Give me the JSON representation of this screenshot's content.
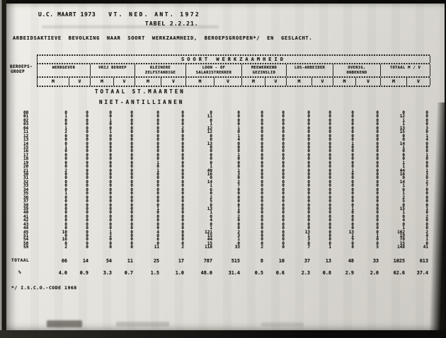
{
  "page": {
    "date_label": "U.C. MAART 1973",
    "census_label": "VT. NED. ANT. 1972",
    "tabel_label": "TABEL 2.2.21.",
    "title": "ARBEIDSAKTIEVE BEVOLKING NAAR SOORT WERKZAAMHEID, BEROEPSGROEPEN*/ EN GESLACHT.",
    "footnote": "*/ I.S.C.O.-CODE 1968"
  },
  "table": {
    "span_header": "SOORT WERKZAAMHEID",
    "row_header_line1": "BEROEPS-",
    "row_header_line2": "GROEP",
    "section_title_1": "TOTAAL ST.MAARTEN",
    "section_title_2": "NIET-ANTILLIANEN",
    "groups": [
      {
        "line1": "WERKGEVER",
        "line2": ""
      },
      {
        "line1": "VRIJ BEROEP",
        "line2": ""
      },
      {
        "line1": "KLEINERE",
        "line2": "ZELFSTANDIGE"
      },
      {
        "line1": "LOON - OF",
        "line2": "SALARISTREKKER"
      },
      {
        "line1": "MEEWERKEND",
        "line2": "GEZINSLID"
      },
      {
        "line1": "LOS-ARBEIDER",
        "line2": ""
      },
      {
        "line1": "OVERIG,",
        "line2": "ONBEKEND"
      },
      {
        "line1": "TOTAAL M / V",
        "line2": ""
      }
    ],
    "subcols": [
      "M",
      "V"
    ],
    "rows": [
      {
        "code": "00",
        "values": [
          0,
          0,
          0,
          0,
          0,
          0,
          0,
          0,
          0,
          0,
          0,
          0,
          0,
          0,
          0,
          0
        ]
      },
      {
        "code": "01",
        "values": [
          1,
          0,
          0,
          0,
          0,
          0,
          11,
          0,
          0,
          0,
          0,
          0,
          0,
          0,
          12,
          0
        ]
      },
      {
        "code": "02",
        "values": [
          0,
          0,
          1,
          0,
          0,
          0,
          0,
          0,
          0,
          0,
          0,
          0,
          0,
          0,
          1,
          0
        ]
      },
      {
        "code": "03",
        "values": [
          0,
          0,
          0,
          0,
          0,
          0,
          1,
          0,
          0,
          0,
          0,
          0,
          0,
          0,
          1,
          0
        ]
      },
      {
        "code": "04",
        "values": [
          1,
          0,
          0,
          0,
          0,
          2,
          12,
          1,
          0,
          0,
          0,
          0,
          0,
          0,
          13,
          3
        ]
      },
      {
        "code": "11",
        "values": [
          2,
          0,
          1,
          0,
          0,
          0,
          12,
          0,
          0,
          0,
          0,
          0,
          0,
          0,
          15,
          0
        ]
      },
      {
        "code": "12",
        "values": [
          0,
          0,
          0,
          0,
          0,
          0,
          0,
          1,
          0,
          0,
          0,
          0,
          0,
          0,
          0,
          1
        ]
      },
      {
        "code": "13",
        "values": [
          0,
          0,
          0,
          0,
          0,
          0,
          0,
          4,
          0,
          0,
          0,
          0,
          0,
          0,
          0,
          4
        ]
      },
      {
        "code": "14",
        "values": [
          0,
          0,
          0,
          0,
          0,
          0,
          13,
          0,
          0,
          0,
          0,
          0,
          1,
          0,
          14,
          0
        ]
      },
      {
        "code": "15",
        "values": [
          1,
          0,
          0,
          0,
          0,
          0,
          0,
          0,
          0,
          0,
          0,
          0,
          0,
          0,
          1,
          0
        ]
      },
      {
        "code": "16",
        "values": [
          0,
          0,
          0,
          0,
          0,
          0,
          0,
          8,
          0,
          0,
          0,
          0,
          0,
          0,
          0,
          8
        ]
      },
      {
        "code": "17",
        "values": [
          0,
          0,
          0,
          0,
          0,
          0,
          0,
          1,
          0,
          0,
          0,
          0,
          0,
          0,
          0,
          1
        ]
      },
      {
        "code": "18",
        "values": [
          0,
          0,
          0,
          0,
          0,
          0,
          0,
          0,
          0,
          0,
          0,
          0,
          0,
          0,
          0,
          0
        ]
      },
      {
        "code": "19",
        "values": [
          0,
          0,
          0,
          0,
          1,
          0,
          0,
          0,
          0,
          0,
          0,
          0,
          0,
          0,
          1,
          0
        ]
      },
      {
        "code": "20",
        "values": [
          0,
          0,
          0,
          0,
          0,
          0,
          1,
          0,
          0,
          0,
          0,
          0,
          0,
          0,
          1,
          0
        ]
      },
      {
        "code": "21",
        "values": [
          2,
          0,
          0,
          0,
          1,
          0,
          40,
          1,
          0,
          0,
          0,
          0,
          1,
          0,
          44,
          1
        ]
      },
      {
        "code": "30",
        "values": [
          0,
          0,
          0,
          0,
          0,
          0,
          16,
          3,
          0,
          0,
          0,
          0,
          0,
          0,
          16,
          3
        ]
      },
      {
        "code": "31",
        "values": [
          0,
          0,
          0,
          0,
          0,
          0,
          0,
          0,
          0,
          0,
          0,
          0,
          0,
          0,
          0,
          0
        ]
      },
      {
        "code": "32",
        "values": [
          0,
          0,
          0,
          0,
          0,
          0,
          14,
          2,
          0,
          0,
          0,
          0,
          0,
          0,
          14,
          2
        ]
      },
      {
        "code": "33",
        "values": [
          0,
          0,
          0,
          0,
          0,
          0,
          1,
          7,
          0,
          0,
          0,
          0,
          0,
          0,
          1,
          7
        ]
      },
      {
        "code": "34",
        "values": [
          0,
          0,
          0,
          0,
          0,
          0,
          6,
          0,
          0,
          0,
          0,
          0,
          0,
          0,
          6,
          0
        ]
      },
      {
        "code": "35",
        "values": [
          1,
          0,
          0,
          0,
          0,
          0,
          0,
          0,
          0,
          0,
          0,
          0,
          0,
          0,
          1,
          0
        ]
      },
      {
        "code": "36",
        "values": [
          0,
          0,
          0,
          0,
          0,
          0,
          2,
          0,
          0,
          0,
          0,
          0,
          0,
          0,
          2,
          0
        ]
      },
      {
        "code": "37",
        "values": [
          0,
          0,
          0,
          0,
          0,
          0,
          5,
          0,
          0,
          0,
          0,
          0,
          0,
          0,
          5,
          0
        ]
      },
      {
        "code": "38",
        "values": [
          0,
          0,
          0,
          0,
          0,
          0,
          0,
          0,
          0,
          0,
          0,
          0,
          0,
          0,
          0,
          0
        ]
      },
      {
        "code": "39",
        "values": [
          0,
          0,
          0,
          0,
          1,
          0,
          13,
          1,
          0,
          0,
          0,
          0,
          1,
          0,
          15,
          1
        ]
      },
      {
        "code": "40",
        "values": [
          0,
          0,
          0,
          0,
          0,
          0,
          1,
          0,
          0,
          0,
          0,
          0,
          0,
          0,
          1,
          0
        ]
      },
      {
        "code": "41",
        "values": [
          0,
          0,
          0,
          0,
          0,
          0,
          0,
          2,
          0,
          0,
          0,
          0,
          0,
          0,
          0,
          2
        ]
      },
      {
        "code": "42",
        "values": [
          0,
          0,
          0,
          0,
          0,
          0,
          4,
          0,
          0,
          0,
          0,
          0,
          0,
          0,
          4,
          0
        ]
      },
      {
        "code": "43",
        "values": [
          0,
          0,
          0,
          0,
          0,
          0,
          0,
          0,
          0,
          0,
          0,
          0,
          0,
          0,
          0,
          0
        ]
      },
      {
        "code": "44",
        "values": [
          0,
          0,
          0,
          0,
          0,
          0,
          1,
          0,
          0,
          0,
          0,
          0,
          0,
          0,
          1,
          0
        ]
      },
      {
        "code": "45",
        "values": [
          10,
          0,
          1,
          0,
          4,
          0,
          121,
          2,
          0,
          0,
          13,
          0,
          13,
          0,
          162,
          2
        ]
      },
      {
        "code": "51",
        "values": [
          0,
          0,
          2,
          0,
          0,
          0,
          15,
          3,
          0,
          0,
          1,
          0,
          1,
          1,
          19,
          4
        ]
      },
      {
        "code": "54",
        "values": [
          16,
          0,
          0,
          0,
          6,
          0,
          44,
          1,
          0,
          0,
          3,
          0,
          9,
          0,
          78,
          1
        ]
      },
      {
        "code": "58",
        "values": [
          0,
          0,
          0,
          0,
          0,
          0,
          15,
          0,
          0,
          0,
          0,
          0,
          0,
          0,
          15,
          0
        ]
      },
      {
        "code": "59",
        "values": [
          2,
          0,
          0,
          0,
          11,
          2,
          118,
          33,
          2,
          0,
          7,
          1,
          8,
          5,
          148,
          41
        ]
      }
    ],
    "total_row": {
      "label": "TOTAAL",
      "values": [
        "66",
        "14",
        "54",
        "11",
        "25",
        "17",
        "787",
        "515",
        "8",
        "10",
        "37",
        "13",
        "48",
        "33",
        "1025",
        "613"
      ]
    },
    "percent_row": {
      "label": "%",
      "values": [
        "4.0",
        "0.9",
        "3.3",
        "0.7",
        "1.5",
        "1.0",
        "48.0",
        "31.4",
        "0.5",
        "0.6",
        "2.3",
        "0.8",
        "2.9",
        "2.0",
        "62.6",
        "37.4"
      ]
    }
  }
}
